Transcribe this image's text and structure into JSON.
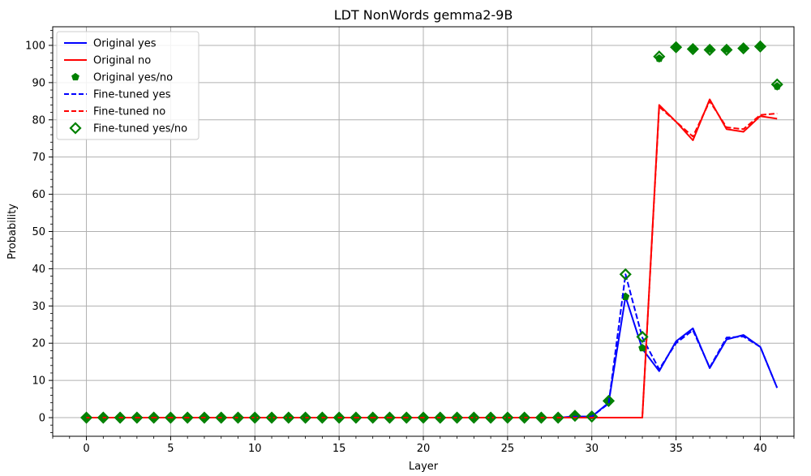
{
  "chart_data": {
    "type": "line",
    "title": "LDT NonWords gemma2-9B",
    "xlabel": "Layer",
    "ylabel": "Probability",
    "xlim": [
      -2,
      42
    ],
    "ylim": [
      -5,
      105
    ],
    "xticks": [
      0,
      5,
      10,
      15,
      20,
      25,
      30,
      35,
      40
    ],
    "yticks": [
      0,
      10,
      20,
      30,
      40,
      50,
      60,
      70,
      80,
      90,
      100
    ],
    "grid": true,
    "legend_position": "upper-left",
    "x": [
      0,
      1,
      2,
      3,
      4,
      5,
      6,
      7,
      8,
      9,
      10,
      11,
      12,
      13,
      14,
      15,
      16,
      17,
      18,
      19,
      20,
      21,
      22,
      23,
      24,
      25,
      26,
      27,
      28,
      29,
      30,
      31,
      32,
      33,
      34,
      35,
      36,
      37,
      38,
      39,
      40,
      41
    ],
    "series": [
      {
        "name": "Original yes",
        "kind": "line",
        "color": "#0000ff",
        "dash": "solid",
        "values": [
          0,
          0,
          0,
          0,
          0,
          0,
          0,
          0,
          0,
          0,
          0,
          0,
          0,
          0,
          0,
          0,
          0,
          0,
          0,
          0,
          0,
          0,
          0,
          0,
          0,
          0,
          0,
          0,
          0,
          0.3,
          0.3,
          4,
          32.5,
          18.5,
          12.5,
          20.5,
          24,
          13.3,
          21,
          22.2,
          19,
          8
        ]
      },
      {
        "name": "Original no",
        "kind": "line",
        "color": "#ff0000",
        "dash": "solid",
        "values": [
          0,
          0,
          0,
          0,
          0,
          0,
          0,
          0,
          0,
          0,
          0,
          0,
          0,
          0,
          0,
          0,
          0,
          0,
          0,
          0,
          0,
          0,
          0,
          0,
          0,
          0,
          0,
          0,
          0,
          0,
          0,
          0,
          0,
          0,
          84,
          79.5,
          74.5,
          85.5,
          77.5,
          76.8,
          81,
          80.3
        ]
      },
      {
        "name": "Original yes/no",
        "kind": "marker",
        "marker": "pentagon",
        "color": "#008000",
        "values": [
          0,
          0,
          0,
          0,
          0,
          0,
          0,
          0,
          0,
          0,
          0,
          0,
          0,
          0,
          0,
          0,
          0,
          0,
          0,
          0,
          0,
          0,
          0,
          0,
          0,
          0,
          0,
          0,
          0,
          0.5,
          0.5,
          4.5,
          32.5,
          18.7,
          96.5,
          99.5,
          99,
          99,
          99,
          99.2,
          99.8,
          89
        ]
      },
      {
        "name": "Fine-tuned yes",
        "kind": "line",
        "color": "#0000ff",
        "dash": "dashed",
        "values": [
          0,
          0,
          0,
          0,
          0,
          0,
          0,
          0,
          0,
          0,
          0,
          0,
          0,
          0,
          0,
          0,
          0,
          0,
          0,
          0,
          0,
          0,
          0,
          0,
          0,
          0,
          0,
          0,
          0,
          0.3,
          0.3,
          3.8,
          38.5,
          21.5,
          13,
          20,
          23.5,
          13.5,
          21.5,
          21.8,
          19,
          8
        ]
      },
      {
        "name": "Fine-tuned no",
        "kind": "line",
        "color": "#ff0000",
        "dash": "dashed",
        "values": [
          0,
          0,
          0,
          0,
          0,
          0,
          0,
          0,
          0,
          0,
          0,
          0,
          0,
          0,
          0,
          0,
          0,
          0,
          0,
          0,
          0,
          0,
          0,
          0,
          0,
          0,
          0,
          0,
          0,
          0,
          0,
          0,
          0,
          0,
          83.5,
          79.5,
          75.5,
          85,
          78,
          77.5,
          81.3,
          81.7
        ]
      },
      {
        "name": "Fine-tuned yes/no",
        "kind": "marker",
        "marker": "diamond-open",
        "color": "#008000",
        "values": [
          0,
          0,
          0,
          0,
          0,
          0,
          0,
          0,
          0,
          0,
          0,
          0,
          0,
          0,
          0,
          0,
          0,
          0,
          0,
          0,
          0,
          0,
          0,
          0,
          0,
          0,
          0,
          0,
          0,
          0.5,
          0.3,
          4.5,
          38.5,
          21.7,
          97,
          99.5,
          99,
          98.8,
          98.8,
          99.2,
          99.7,
          89.5
        ]
      }
    ]
  }
}
